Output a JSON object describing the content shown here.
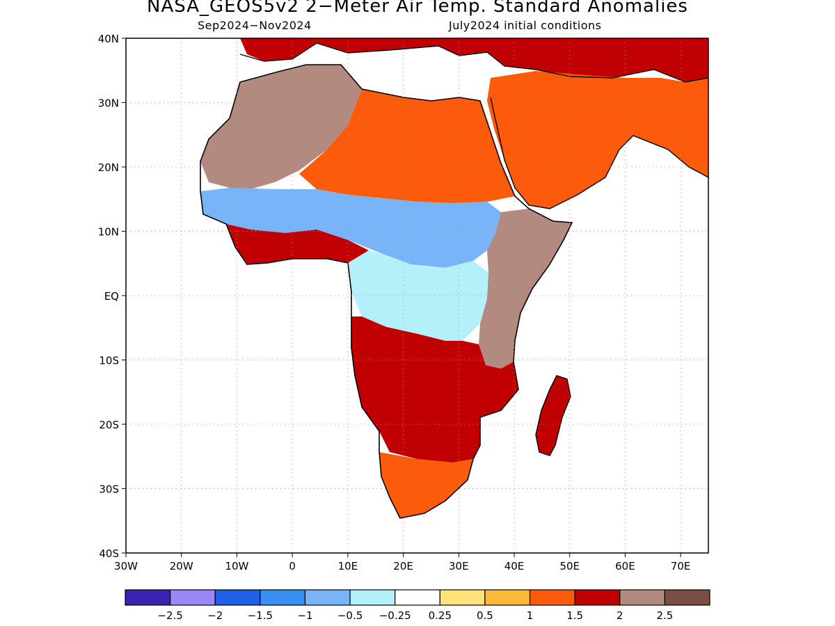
{
  "header": {
    "title": "NASA_GEOS5v2 2−Meter Air Temp. Standard Anomalies",
    "period": "Sep2024−Nov2024",
    "init": "July2024 initial conditions"
  },
  "map": {
    "lat_range": [
      -40,
      40
    ],
    "lon_range": [
      -30,
      75
    ],
    "lat_ticks": [
      {
        "value": 40,
        "label": "40N"
      },
      {
        "value": 30,
        "label": "30N"
      },
      {
        "value": 20,
        "label": "20N"
      },
      {
        "value": 10,
        "label": "10N"
      },
      {
        "value": 0,
        "label": "EQ"
      },
      {
        "value": -10,
        "label": "10S"
      },
      {
        "value": -20,
        "label": "20S"
      },
      {
        "value": -30,
        "label": "30S"
      },
      {
        "value": -40,
        "label": "40S"
      }
    ],
    "lon_ticks": [
      {
        "value": -30,
        "label": "30W"
      },
      {
        "value": -20,
        "label": "20W"
      },
      {
        "value": -10,
        "label": "10W"
      },
      {
        "value": 0,
        "label": "0"
      },
      {
        "value": 10,
        "label": "10E"
      },
      {
        "value": 20,
        "label": "20E"
      },
      {
        "value": 30,
        "label": "30E"
      },
      {
        "value": 40,
        "label": "40E"
      },
      {
        "value": 50,
        "label": "50E"
      },
      {
        "value": 60,
        "label": "60E"
      },
      {
        "value": 70,
        "label": "70E"
      }
    ],
    "grid": "dotted"
  },
  "colorbar": {
    "colors": [
      "#3b22b3",
      "#9b87f5",
      "#1f60e6",
      "#3a8df2",
      "#78b4f7",
      "#b4f0fa",
      "#ffffff",
      "#ffe27a",
      "#ffbb38",
      "#fc5b0c",
      "#c00000",
      "#b38a80",
      "#7a4e40"
    ],
    "labels": [
      "−2.5",
      "−2",
      "−1.5",
      "−1",
      "−0.5",
      "−0.25",
      "0.25",
      "0.5",
      "1",
      "1.5",
      "2",
      "2.5"
    ]
  },
  "regions": [
    {
      "name": "Mediterranean Europe",
      "level": "1.5"
    },
    {
      "name": "Northwest Africa / Sahara",
      "level": "2"
    },
    {
      "name": "Central Sahara / Libya / Egypt",
      "level": "1"
    },
    {
      "name": "Sahel",
      "level": "-1"
    },
    {
      "name": "Gulf of Guinea coast",
      "level": "1.5"
    },
    {
      "name": "Congo Basin",
      "level": "-0.5"
    },
    {
      "name": "East Africa / Ethiopia",
      "level": "2"
    },
    {
      "name": "Arabian Peninsula",
      "level": "1"
    },
    {
      "name": "Southern Africa",
      "level": "1.5"
    },
    {
      "name": "South Africa",
      "level": "1"
    },
    {
      "name": "Madagascar",
      "level": "1.5"
    }
  ]
}
